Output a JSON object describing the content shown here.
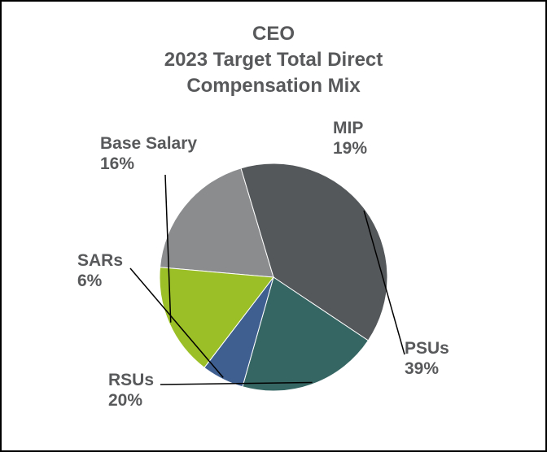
{
  "chart_data": {
    "type": "pie",
    "title_lines": [
      "CEO",
      "2023 Target Total Direct",
      "Compensation Mix"
    ],
    "slices": [
      {
        "label": "MIP",
        "value": 19,
        "value_label": "19%",
        "color": "#8a8c8e"
      },
      {
        "label": "PSUs",
        "value": 39,
        "value_label": "39%",
        "color": "#55585b"
      },
      {
        "label": "RSUs",
        "value": 20,
        "value_label": "20%",
        "color": "#356663"
      },
      {
        "label": "SARs",
        "value": 6,
        "value_label": "6%",
        "color": "#3f5f91"
      },
      {
        "label": "Base Salary",
        "value": 16,
        "value_label": "16%",
        "color": "#9bbf26"
      }
    ]
  }
}
